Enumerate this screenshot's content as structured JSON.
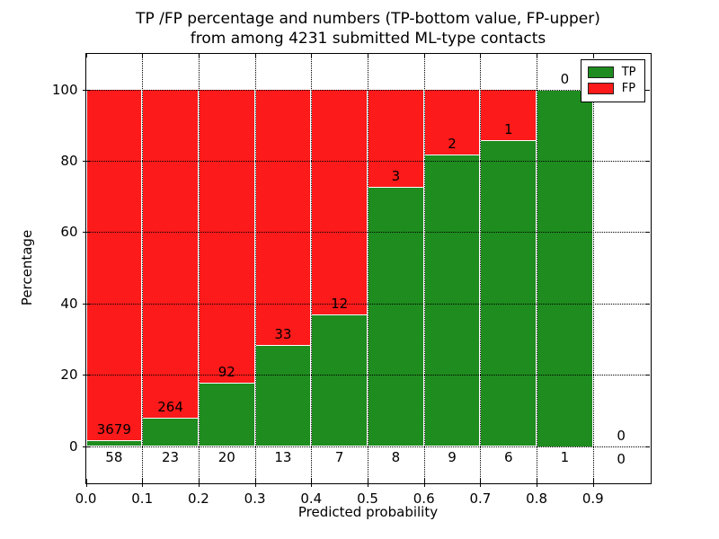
{
  "title": {
    "line1": "TP /FP percentage and numbers (TP-bottom value, FP-upper)",
    "line2": "from among 4231 submitted ML-type contacts"
  },
  "axes": {
    "xlabel": "Predicted probability",
    "ylabel": "Percentage"
  },
  "legend": {
    "position": "upper right",
    "entries": [
      {
        "label": "TP",
        "color": "#1e8c1e"
      },
      {
        "label": "FP",
        "color": "#fc1a1a"
      }
    ]
  },
  "colors": {
    "tp": "#1e8c1e",
    "fp": "#fc1a1a",
    "text": "#000000",
    "background": "#ffffff"
  },
  "chart_data": {
    "type": "bar",
    "stacked": true,
    "title": "TP /FP percentage and numbers (TP-bottom value, FP-upper) from among 4231 submitted ML-type contacts",
    "xlabel": "Predicted probability",
    "ylabel": "Percentage",
    "xlim": [
      0.0,
      1.0
    ],
    "ylim": [
      -10,
      110
    ],
    "yticks": [
      0,
      20,
      40,
      60,
      80,
      100
    ],
    "xtick_labels": [
      "0.0",
      "0.1",
      "0.2",
      "0.3",
      "0.4",
      "0.5",
      "0.6",
      "0.7",
      "0.8",
      "0.9"
    ],
    "grid": true,
    "legend_position": "upper right",
    "series_note": "Each bin stacks TP% (green, bottom) and FP% (red, top) summing to 100%; labels show raw counts (FP above boundary, TP below)",
    "bins": [
      {
        "range": "0.0-0.1",
        "tp_count": 58,
        "fp_count": 3679,
        "tp_pct": 1.55,
        "fp_pct": 98.45,
        "has_bar": true
      },
      {
        "range": "0.1-0.2",
        "tp_count": 23,
        "fp_count": 264,
        "tp_pct": 8.01,
        "fp_pct": 91.99,
        "has_bar": true
      },
      {
        "range": "0.2-0.3",
        "tp_count": 20,
        "fp_count": 92,
        "tp_pct": 17.86,
        "fp_pct": 82.14,
        "has_bar": true
      },
      {
        "range": "0.3-0.4",
        "tp_count": 13,
        "fp_count": 33,
        "tp_pct": 28.26,
        "fp_pct": 71.74,
        "has_bar": true
      },
      {
        "range": "0.4-0.5",
        "tp_count": 7,
        "fp_count": 12,
        "tp_pct": 36.84,
        "fp_pct": 63.16,
        "has_bar": true
      },
      {
        "range": "0.5-0.6",
        "tp_count": 8,
        "fp_count": 3,
        "tp_pct": 72.73,
        "fp_pct": 27.27,
        "has_bar": true
      },
      {
        "range": "0.6-0.7",
        "tp_count": 9,
        "fp_count": 2,
        "tp_pct": 81.82,
        "fp_pct": 18.18,
        "has_bar": true
      },
      {
        "range": "0.7-0.8",
        "tp_count": 6,
        "fp_count": 1,
        "tp_pct": 85.71,
        "fp_pct": 14.29,
        "has_bar": true
      },
      {
        "range": "0.8-0.9",
        "tp_count": 1,
        "fp_count": 0,
        "tp_pct": 100.0,
        "fp_pct": 0.0,
        "has_bar": true
      },
      {
        "range": "0.9-1.0",
        "tp_count": 0,
        "fp_count": 0,
        "tp_pct": 0.0,
        "fp_pct": 0.0,
        "has_bar": false
      }
    ]
  }
}
